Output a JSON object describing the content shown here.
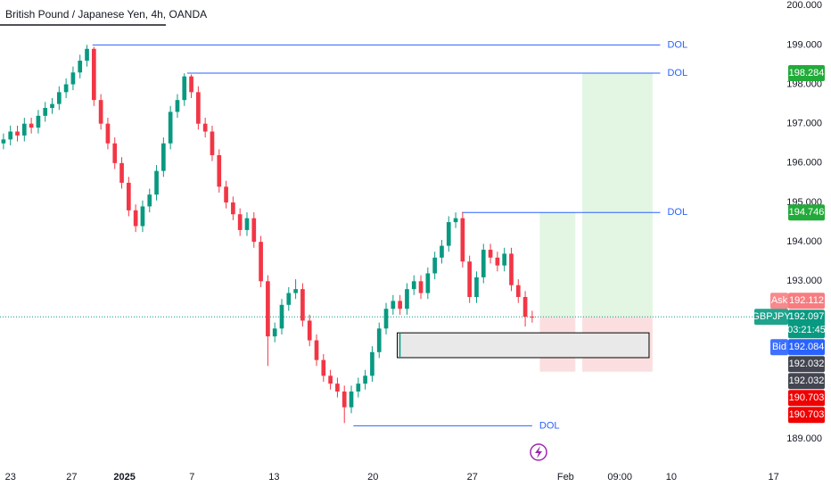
{
  "chart_data": {
    "type": "candlestick",
    "title": "British Pound / Japanese Yen, 4h, OANDA",
    "up_color": "#089981",
    "down_color": "#f23645",
    "open": [
      196.5,
      196.6,
      196.8,
      196.7,
      197.0,
      196.9,
      197.2,
      197.4,
      197.5,
      197.8,
      198.0,
      198.3,
      198.6,
      198.9,
      197.6,
      197.0,
      196.5,
      196.0,
      195.5,
      194.8,
      194.4,
      194.9,
      195.2,
      195.8,
      196.5,
      197.3,
      197.6,
      198.2,
      197.8,
      197.0,
      196.8,
      196.2,
      195.4,
      195.0,
      194.7,
      194.3,
      194.6,
      194.0,
      193.0,
      191.6,
      191.8,
      192.4,
      192.7,
      192.8,
      192.0,
      191.5,
      191.0,
      190.6,
      190.4,
      190.2,
      189.8,
      190.2,
      190.4,
      190.6,
      191.2,
      191.8,
      192.3,
      192.5,
      192.3,
      192.8,
      193.0,
      192.7,
      193.2,
      193.6,
      193.9,
      194.5,
      194.6,
      193.5,
      192.6,
      193.1,
      193.8,
      193.6,
      193.4,
      193.7,
      192.9,
      192.6,
      192.1
    ],
    "high": [
      196.75,
      196.95,
      196.95,
      197.15,
      197.15,
      197.35,
      197.55,
      197.65,
      197.95,
      198.15,
      198.45,
      198.75,
      199.0,
      198.95,
      197.75,
      197.15,
      196.65,
      196.15,
      195.65,
      194.95,
      195.05,
      195.35,
      195.95,
      196.65,
      197.45,
      197.75,
      198.28,
      198.25,
      197.95,
      197.15,
      196.95,
      196.35,
      195.55,
      195.15,
      194.85,
      194.75,
      194.75,
      194.15,
      193.15,
      191.95,
      192.55,
      192.85,
      193.05,
      192.95,
      192.15,
      191.65,
      191.15,
      190.75,
      190.55,
      190.35,
      190.35,
      190.55,
      190.75,
      191.35,
      191.95,
      192.45,
      192.65,
      192.65,
      192.95,
      193.15,
      193.15,
      193.35,
      193.75,
      194.05,
      194.65,
      194.746,
      194.75,
      193.65,
      193.25,
      193.95,
      193.95,
      193.75,
      193.85,
      193.85,
      193.05,
      192.75,
      192.25
    ],
    "low": [
      196.35,
      196.45,
      196.55,
      196.55,
      196.75,
      196.75,
      197.05,
      197.25,
      197.35,
      197.65,
      197.85,
      198.15,
      198.45,
      197.45,
      196.85,
      196.35,
      195.85,
      195.35,
      194.65,
      194.25,
      194.25,
      194.75,
      195.05,
      195.65,
      196.35,
      197.15,
      197.45,
      197.65,
      196.85,
      196.65,
      196.05,
      195.25,
      194.85,
      194.55,
      194.15,
      194.15,
      193.85,
      192.85,
      190.85,
      191.45,
      191.65,
      192.25,
      192.55,
      191.85,
      191.35,
      190.85,
      190.45,
      190.25,
      190.05,
      189.4,
      189.65,
      190.05,
      190.25,
      190.45,
      191.05,
      191.65,
      192.15,
      192.15,
      192.15,
      192.65,
      192.55,
      192.55,
      193.05,
      193.45,
      193.75,
      194.35,
      193.35,
      192.45,
      192.45,
      192.95,
      193.45,
      193.25,
      193.25,
      192.75,
      192.45,
      191.85,
      191.95
    ],
    "close": [
      196.6,
      196.8,
      196.7,
      197.0,
      196.9,
      197.2,
      197.4,
      197.5,
      197.8,
      198.0,
      198.3,
      198.6,
      198.9,
      197.6,
      197.0,
      196.5,
      196.0,
      195.5,
      194.8,
      194.4,
      194.9,
      195.2,
      195.8,
      196.5,
      197.3,
      197.6,
      198.2,
      197.8,
      197.0,
      196.8,
      196.2,
      195.4,
      195.0,
      194.7,
      194.3,
      194.6,
      194.0,
      193.0,
      191.6,
      191.8,
      192.4,
      192.7,
      192.8,
      192.0,
      191.5,
      191.0,
      190.6,
      190.4,
      190.2,
      189.8,
      190.2,
      190.4,
      190.6,
      191.2,
      191.8,
      192.3,
      192.5,
      192.3,
      192.8,
      193.0,
      192.7,
      193.2,
      193.6,
      193.9,
      194.5,
      194.6,
      193.5,
      192.6,
      193.1,
      193.8,
      193.6,
      193.4,
      193.7,
      192.9,
      192.6,
      192.1,
      192.097
    ],
    "xlim": [
      -0.5,
      107.8
    ],
    "xticks": [
      {
        "value": 1.0,
        "label": "23"
      },
      {
        "value": 9.8,
        "label": "27"
      },
      {
        "value": 17.4,
        "label": "2025"
      },
      {
        "value": 27.1,
        "label": "7"
      },
      {
        "value": 38.9,
        "label": "13"
      },
      {
        "value": 53.1,
        "label": "20"
      },
      {
        "value": 67.4,
        "label": "27"
      },
      {
        "value": 80.8,
        "label": "Feb"
      },
      {
        "value": 88.6,
        "label": "09:00"
      },
      {
        "value": 96.0,
        "label": "10"
      },
      {
        "value": 110.7,
        "label": "17"
      }
    ],
    "ylim": [
      188.32,
      200.14
    ],
    "yticks": [
      {
        "value": 189,
        "label": "189.000"
      },
      {
        "value": 193,
        "label": "193.000"
      },
      {
        "value": 194,
        "label": "194.000"
      },
      {
        "value": 195,
        "label": "195.000"
      },
      {
        "value": 196,
        "label": "196.000"
      },
      {
        "value": 197,
        "label": "197.000"
      },
      {
        "value": 198,
        "label": "198.000"
      },
      {
        "value": 199,
        "label": "199.000"
      },
      {
        "value": 200,
        "label": "200.000"
      }
    ],
    "levels": [
      {
        "label": "DOL",
        "value": 199.0,
        "from": 12.8,
        "to": 94.4,
        "color": "#2962ff"
      },
      {
        "label": "DOL",
        "value": 198.284,
        "from": 26.4,
        "to": 94.4,
        "color": "#2962ff"
      },
      {
        "label": "DOL",
        "value": 194.746,
        "from": 65.9,
        "to": 94.4,
        "color": "#2962ff"
      },
      {
        "label": "DOL",
        "value": 189.33,
        "from": 50.3,
        "to": 76.0,
        "color": "#2962ff"
      }
    ],
    "zones": [
      {
        "from": 77.1,
        "to": 82.2,
        "top": 194.746,
        "bottom": 192.097,
        "color": "#e3f5e3"
      },
      {
        "from": 83.2,
        "to": 93.3,
        "top": 198.284,
        "bottom": 192.097,
        "color": "#e3f5e3"
      },
      {
        "from": 77.1,
        "to": 82.2,
        "top": 192.097,
        "bottom": 190.703,
        "color": "#fbdfe0"
      },
      {
        "from": 83.2,
        "to": 93.3,
        "top": 192.097,
        "bottom": 190.703,
        "color": "#fbdfe0"
      },
      {
        "from": 56.6,
        "to": 92.8,
        "top": 191.69,
        "bottom": 191.06,
        "color": "#e9e9e9",
        "border": "#000000"
      }
    ],
    "price_tags": [
      {
        "value": 198.284,
        "color": "#22ab3a"
      },
      {
        "value": 194.746,
        "color": "#22ab3a"
      },
      {
        "name": "Ask",
        "value": 192.112,
        "color": "#f77c80"
      },
      {
        "name": "GBPJPY",
        "value": 192.097,
        "countdown": "03:21:45",
        "color": "#089981"
      },
      {
        "name": "Bid",
        "value": 192.084,
        "color": "#2962ff"
      },
      {
        "value": 192.032,
        "color": "#434651"
      },
      {
        "value": 192.032,
        "color": "#434651"
      },
      {
        "value": 190.703,
        "color": "#f00000"
      },
      {
        "value": 190.703,
        "color": "#f00000"
      }
    ]
  }
}
